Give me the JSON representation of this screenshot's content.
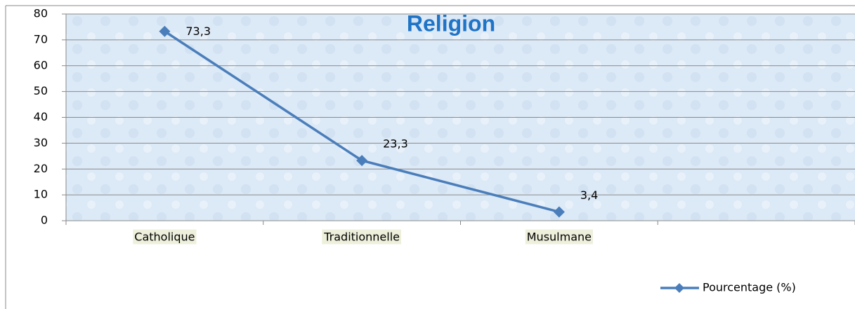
{
  "chart_data": {
    "type": "line",
    "title": "Religion",
    "categories": [
      "Catholique",
      "Traditionnelle",
      "Musulmane",
      null
    ],
    "series": [
      {
        "name": "Pourcentage (%)",
        "color": "#4a7ebb",
        "values": [
          73.3,
          23.3,
          3.4,
          null
        ],
        "value_labels": [
          "73,3",
          "23,3",
          "3,4",
          null
        ]
      }
    ],
    "ylim": [
      0,
      80
    ],
    "yticks": [
      0,
      10,
      20,
      30,
      40,
      50,
      60,
      70,
      80
    ],
    "grid": true,
    "legend": "bottom-right"
  }
}
